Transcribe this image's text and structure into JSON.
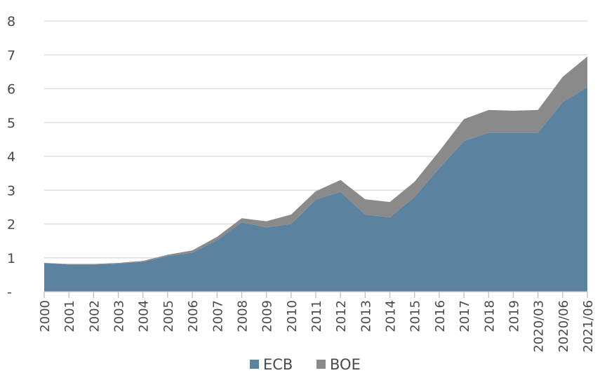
{
  "chart_data": {
    "type": "area",
    "stacked": true,
    "categories": [
      "2000",
      "2001",
      "2002",
      "2003",
      "2004",
      "2005",
      "2006",
      "2007",
      "2008",
      "2009",
      "2010",
      "2011",
      "2012",
      "2013",
      "2014",
      "2015",
      "2016",
      "2017",
      "2018",
      "2019",
      "2020/03",
      "2020/06",
      "2021/06"
    ],
    "series": [
      {
        "name": "ECB",
        "color": "#5b83a0",
        "values": [
          0.85,
          0.8,
          0.8,
          0.83,
          0.88,
          1.05,
          1.15,
          1.52,
          2.05,
          1.9,
          2.0,
          2.72,
          2.95,
          2.28,
          2.2,
          2.8,
          3.65,
          4.45,
          4.7,
          4.7,
          4.7,
          5.6,
          6.05
        ]
      },
      {
        "name": "BOE",
        "color": "#8a8a8a",
        "values": [
          0.0,
          0.02,
          0.02,
          0.02,
          0.03,
          0.04,
          0.07,
          0.1,
          0.12,
          0.18,
          0.28,
          0.25,
          0.35,
          0.45,
          0.45,
          0.45,
          0.5,
          0.65,
          0.67,
          0.65,
          0.67,
          0.75,
          0.9
        ]
      }
    ],
    "ylim": [
      0,
      8
    ],
    "yticks": [
      0,
      1,
      2,
      3,
      4,
      5,
      6,
      7,
      8
    ],
    "ytick_labels": [
      "-",
      "1",
      "2",
      "3",
      "4",
      "5",
      "6",
      "7",
      "8"
    ],
    "grid": true,
    "legend": "bottom-center",
    "title": "",
    "xlabel": "",
    "ylabel": ""
  }
}
